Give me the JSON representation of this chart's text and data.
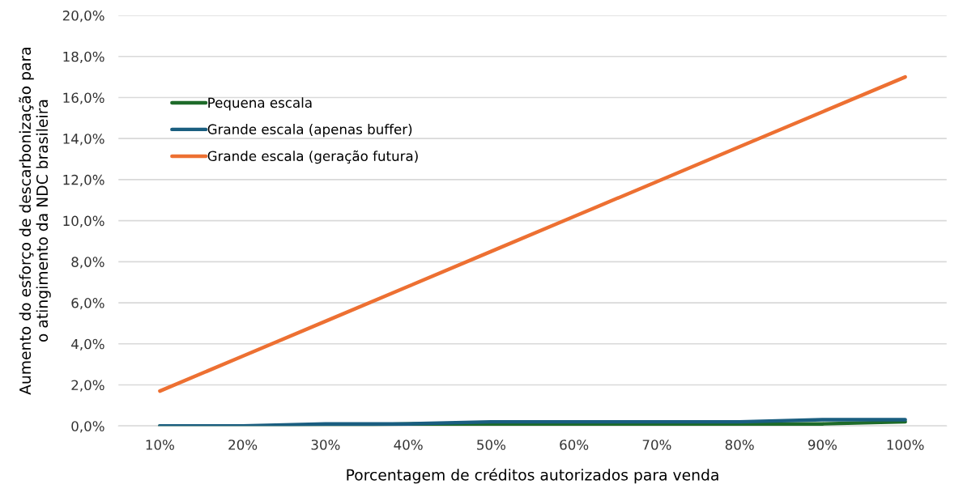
{
  "chart_data": {
    "type": "line",
    "xlabel": "Porcentagem de créditos autorizados para venda",
    "ylabel": "Aumento do esforço de descarbonização para\no atingimento da NDC brasileira",
    "categories": [
      "10%",
      "20%",
      "30%",
      "40%",
      "50%",
      "60%",
      "70%",
      "80%",
      "90%",
      "100%"
    ],
    "series": [
      {
        "name": "Pequena escala",
        "color": "#1e6b2a",
        "values": [
          0.0,
          0.0,
          0.0,
          0.1,
          0.1,
          0.1,
          0.1,
          0.1,
          0.1,
          0.2
        ]
      },
      {
        "name": "Grande escala (apenas buffer)",
        "color": "#1a5e80",
        "values": [
          0.0,
          0.0,
          0.1,
          0.1,
          0.2,
          0.2,
          0.2,
          0.2,
          0.3,
          0.3
        ]
      },
      {
        "name": "Grande escala (geração futura)",
        "color": "#ed7032",
        "values": [
          1.7,
          3.4,
          5.1,
          6.8,
          8.5,
          10.2,
          11.9,
          13.6,
          15.3,
          17.0
        ]
      }
    ],
    "ylim": [
      0,
      20
    ],
    "yticks": [
      {
        "value": 0,
        "label": "0,0%"
      },
      {
        "value": 2,
        "label": "2,0%"
      },
      {
        "value": 4,
        "label": "4,0%"
      },
      {
        "value": 6,
        "label": "6,0%"
      },
      {
        "value": 8,
        "label": "8,0%"
      },
      {
        "value": 10,
        "label": "10,0%"
      },
      {
        "value": 12,
        "label": "12,0%"
      },
      {
        "value": 14,
        "label": "14,0%"
      },
      {
        "value": 16,
        "label": "16,0%"
      },
      {
        "value": 18,
        "label": "18,0%"
      },
      {
        "value": 20,
        "label": "20,0%"
      }
    ],
    "grid": "y",
    "legend": "top left",
    "marker": "none",
    "line_style": "solid"
  }
}
